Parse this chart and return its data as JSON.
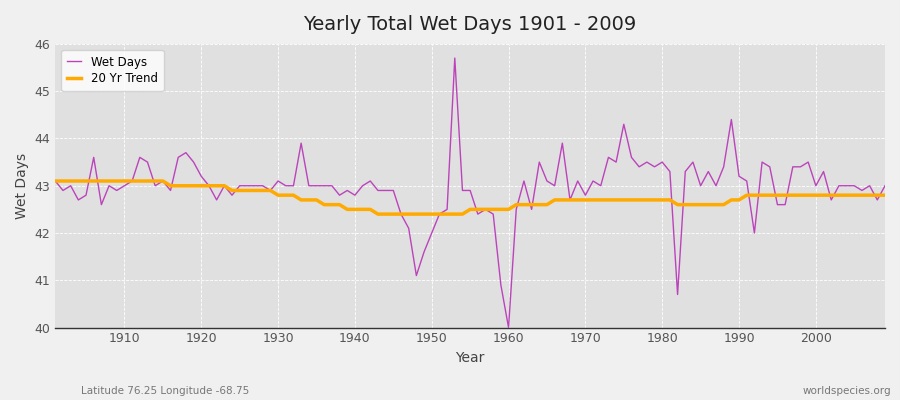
{
  "title": "Yearly Total Wet Days 1901 - 2009",
  "xlabel": "Year",
  "ylabel": "Wet Days",
  "subtitle_left": "Latitude 76.25 Longitude -68.75",
  "subtitle_right": "worldspecies.org",
  "ylim": [
    40,
    46
  ],
  "xlim": [
    1901,
    2009
  ],
  "yticks": [
    40,
    41,
    42,
    43,
    44,
    45,
    46
  ],
  "xticks": [
    1910,
    1920,
    1930,
    1940,
    1950,
    1960,
    1970,
    1980,
    1990,
    2000
  ],
  "wet_days_color": "#bb44bb",
  "trend_color": "#ffaa00",
  "fig_bg_color": "#f0f0f0",
  "plot_bg_color": "#e0e0e0",
  "grid_color": "#ffffff",
  "wet_days": {
    "1901": 43.1,
    "1902": 42.9,
    "1903": 43.0,
    "1904": 42.7,
    "1905": 42.8,
    "1906": 43.6,
    "1907": 42.6,
    "1908": 43.0,
    "1909": 42.9,
    "1910": 43.0,
    "1911": 43.1,
    "1912": 43.6,
    "1913": 43.5,
    "1914": 43.0,
    "1915": 43.1,
    "1916": 42.9,
    "1917": 43.6,
    "1918": 43.7,
    "1919": 43.5,
    "1920": 43.2,
    "1921": 43.0,
    "1922": 42.7,
    "1923": 43.0,
    "1924": 42.8,
    "1925": 43.0,
    "1926": 43.0,
    "1927": 43.0,
    "1928": 43.0,
    "1929": 42.9,
    "1930": 43.1,
    "1931": 43.0,
    "1932": 43.0,
    "1933": 43.9,
    "1934": 43.0,
    "1935": 43.0,
    "1936": 43.0,
    "1937": 43.0,
    "1938": 42.8,
    "1939": 42.9,
    "1940": 42.8,
    "1941": 43.0,
    "1942": 43.1,
    "1943": 42.9,
    "1944": 42.9,
    "1945": 42.9,
    "1946": 42.4,
    "1947": 42.1,
    "1948": 41.1,
    "1949": 41.6,
    "1950": 42.0,
    "1951": 42.4,
    "1952": 42.5,
    "1953": 45.7,
    "1954": 42.9,
    "1955": 42.9,
    "1956": 42.4,
    "1957": 42.5,
    "1958": 42.4,
    "1959": 40.9,
    "1960": 40.0,
    "1961": 42.5,
    "1962": 43.1,
    "1963": 42.5,
    "1964": 43.5,
    "1965": 43.1,
    "1966": 43.0,
    "1967": 43.9,
    "1968": 42.7,
    "1969": 43.1,
    "1970": 42.8,
    "1971": 43.1,
    "1972": 43.0,
    "1973": 43.6,
    "1974": 43.5,
    "1975": 44.3,
    "1976": 43.6,
    "1977": 43.4,
    "1978": 43.5,
    "1979": 43.4,
    "1980": 43.5,
    "1981": 43.3,
    "1982": 40.7,
    "1983": 43.3,
    "1984": 43.5,
    "1985": 43.0,
    "1986": 43.3,
    "1987": 43.0,
    "1988": 43.4,
    "1989": 44.4,
    "1990": 43.2,
    "1991": 43.1,
    "1992": 42.0,
    "1993": 43.5,
    "1994": 43.4,
    "1995": 42.6,
    "1996": 42.6,
    "1997": 43.4,
    "1998": 43.4,
    "1999": 43.5,
    "2000": 43.0,
    "2001": 43.3,
    "2002": 42.7,
    "2003": 43.0,
    "2004": 43.0,
    "2005": 43.0,
    "2006": 42.9,
    "2007": 43.0,
    "2008": 42.7,
    "2009": 43.0
  },
  "trend_20yr": {
    "1901": 43.1,
    "1902": 43.1,
    "1903": 43.1,
    "1904": 43.1,
    "1905": 43.1,
    "1906": 43.1,
    "1907": 43.1,
    "1908": 43.1,
    "1909": 43.1,
    "1910": 43.1,
    "1911": 43.1,
    "1912": 43.1,
    "1913": 43.1,
    "1914": 43.1,
    "1915": 43.1,
    "1916": 43.0,
    "1917": 43.0,
    "1918": 43.0,
    "1919": 43.0,
    "1920": 43.0,
    "1921": 43.0,
    "1922": 43.0,
    "1923": 43.0,
    "1924": 42.9,
    "1925": 42.9,
    "1926": 42.9,
    "1927": 42.9,
    "1928": 42.9,
    "1929": 42.9,
    "1930": 42.8,
    "1931": 42.8,
    "1932": 42.8,
    "1933": 42.7,
    "1934": 42.7,
    "1935": 42.7,
    "1936": 42.6,
    "1937": 42.6,
    "1938": 42.6,
    "1939": 42.5,
    "1940": 42.5,
    "1941": 42.5,
    "1942": 42.5,
    "1943": 42.4,
    "1944": 42.4,
    "1945": 42.4,
    "1946": 42.4,
    "1947": 42.4,
    "1948": 42.4,
    "1949": 42.4,
    "1950": 42.4,
    "1951": 42.4,
    "1952": 42.4,
    "1953": 42.4,
    "1954": 42.4,
    "1955": 42.5,
    "1956": 42.5,
    "1957": 42.5,
    "1958": 42.5,
    "1959": 42.5,
    "1960": 42.5,
    "1961": 42.6,
    "1962": 42.6,
    "1963": 42.6,
    "1964": 42.6,
    "1965": 42.6,
    "1966": 42.7,
    "1967": 42.7,
    "1968": 42.7,
    "1969": 42.7,
    "1970": 42.7,
    "1971": 42.7,
    "1972": 42.7,
    "1973": 42.7,
    "1974": 42.7,
    "1975": 42.7,
    "1976": 42.7,
    "1977": 42.7,
    "1978": 42.7,
    "1979": 42.7,
    "1980": 42.7,
    "1981": 42.7,
    "1982": 42.6,
    "1983": 42.6,
    "1984": 42.6,
    "1985": 42.6,
    "1986": 42.6,
    "1987": 42.6,
    "1988": 42.6,
    "1989": 42.7,
    "1990": 42.7,
    "1991": 42.8,
    "1992": 42.8,
    "1993": 42.8,
    "1994": 42.8,
    "1995": 42.8,
    "1996": 42.8,
    "1997": 42.8,
    "1998": 42.8,
    "1999": 42.8,
    "2000": 42.8,
    "2001": 42.8,
    "2002": 42.8,
    "2003": 42.8,
    "2004": 42.8,
    "2005": 42.8,
    "2006": 42.8,
    "2007": 42.8,
    "2008": 42.8,
    "2009": 42.8
  }
}
